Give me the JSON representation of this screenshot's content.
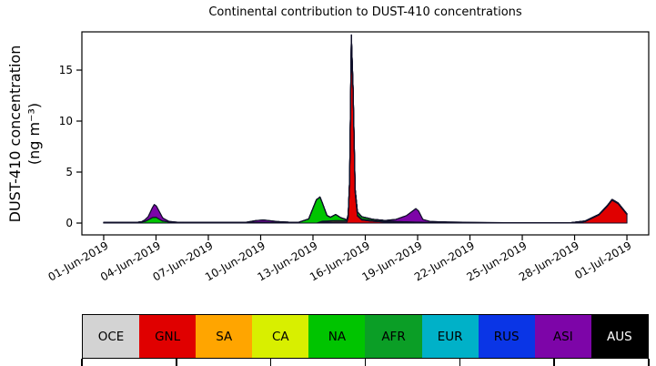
{
  "chart_data": {
    "type": "area",
    "stacked": true,
    "title": "Continental contribution to DUST-410 concentrations",
    "ylabel": "DUST-410 concentration (ng m⁻³)",
    "ylabel_lines": [
      "DUST-410 concentration",
      "(ng m⁻³)"
    ],
    "xlabel": "",
    "x_unit": "days since 01-Jun-2019",
    "xticks_days": [
      0,
      3,
      6,
      9,
      12,
      15,
      18,
      21,
      24,
      27,
      30
    ],
    "xticklabels": [
      "01-Jun-2019",
      "04-Jun-2019",
      "07-Jun-2019",
      "10-Jun-2019",
      "13-Jun-2019",
      "16-Jun-2019",
      "19-Jun-2019",
      "22-Jun-2019",
      "25-Jun-2019",
      "28-Jun-2019",
      "01-Jul-2019"
    ],
    "yticks": [
      0,
      5,
      10,
      15
    ],
    "xlim_days": [
      -1.25,
      31.25
    ],
    "ylim": [
      -1.16,
      18.75
    ],
    "grid": false,
    "line_color": "#10102a",
    "background": "#ffffff",
    "series": [
      {
        "name": "OCE",
        "color": "#d3d3d3",
        "points": [
          [
            0,
            0
          ],
          [
            30,
            0
          ]
        ]
      },
      {
        "name": "GNL",
        "color": "#e00000",
        "points": [
          [
            0,
            0
          ],
          [
            12.2,
            0
          ],
          [
            12.5,
            0.1
          ],
          [
            13.6,
            0.12
          ],
          [
            13.95,
            0.12
          ],
          [
            14.02,
            0.6
          ],
          [
            14.1,
            4.0
          ],
          [
            14.2,
            18.2
          ],
          [
            14.3,
            13.0
          ],
          [
            14.42,
            3.0
          ],
          [
            14.55,
            0.7
          ],
          [
            14.8,
            0.3
          ],
          [
            15.4,
            0.18
          ],
          [
            16.2,
            0.1
          ],
          [
            17.2,
            0.05
          ],
          [
            18.3,
            0.02
          ],
          [
            19.2,
            0
          ],
          [
            26.8,
            0
          ],
          [
            27.6,
            0.15
          ],
          [
            28.4,
            0.8
          ],
          [
            28.9,
            1.7
          ],
          [
            29.15,
            2.25
          ],
          [
            29.5,
            1.9
          ],
          [
            30,
            0.85
          ]
        ]
      },
      {
        "name": "SA",
        "color": "#ffa500",
        "points": [
          [
            0,
            0
          ],
          [
            30,
            0
          ]
        ]
      },
      {
        "name": "CA",
        "color": "#d8ef00",
        "points": [
          [
            0,
            0
          ],
          [
            12.25,
            0
          ],
          [
            12.55,
            0.08
          ],
          [
            13.3,
            0.13
          ],
          [
            14.3,
            0.1
          ],
          [
            15.2,
            0.08
          ],
          [
            16.0,
            0.04
          ],
          [
            16.8,
            0
          ],
          [
            30,
            0
          ]
        ]
      },
      {
        "name": "NA",
        "color": "#00c400",
        "points": [
          [
            0,
            0.06
          ],
          [
            1.9,
            0.07
          ],
          [
            2.35,
            0.15
          ],
          [
            2.8,
            0.55
          ],
          [
            3.0,
            0.58
          ],
          [
            3.35,
            0.22
          ],
          [
            3.75,
            0.1
          ],
          [
            4.6,
            0.06
          ],
          [
            7.9,
            0.06
          ],
          [
            9.0,
            0.09
          ],
          [
            10.1,
            0.06
          ],
          [
            11.2,
            0.09
          ],
          [
            11.75,
            0.4
          ],
          [
            12.2,
            2.3
          ],
          [
            12.4,
            2.45
          ],
          [
            12.8,
            0.55
          ],
          [
            13.0,
            0.35
          ],
          [
            13.3,
            0.6
          ],
          [
            13.6,
            0.28
          ],
          [
            13.9,
            0.12
          ],
          [
            14.25,
            0.14
          ],
          [
            14.55,
            0.3
          ],
          [
            14.85,
            0.22
          ],
          [
            15.4,
            0.13
          ],
          [
            16.3,
            0.1
          ],
          [
            17.3,
            0.08
          ],
          [
            18.3,
            0.06
          ],
          [
            19.6,
            0.05
          ],
          [
            22,
            0.04
          ],
          [
            25.5,
            0.04
          ],
          [
            27.5,
            0.05
          ],
          [
            28.8,
            0.07
          ],
          [
            29.5,
            0.07
          ],
          [
            30,
            0.06
          ]
        ]
      },
      {
        "name": "AFR",
        "color": "#0b9e26",
        "points": [
          [
            0,
            0
          ],
          [
            30,
            0
          ]
        ]
      },
      {
        "name": "EUR",
        "color": "#00b1c8",
        "points": [
          [
            0,
            0
          ],
          [
            30,
            0
          ]
        ]
      },
      {
        "name": "RUS",
        "color": "#0a35e6",
        "points": [
          [
            0,
            0
          ],
          [
            30,
            0
          ]
        ]
      },
      {
        "name": "ASI",
        "color": "#7d05a8",
        "points": [
          [
            0,
            0
          ],
          [
            2.15,
            0
          ],
          [
            2.55,
            0.3
          ],
          [
            2.9,
            1.25
          ],
          [
            3.05,
            1.05
          ],
          [
            3.4,
            0.28
          ],
          [
            3.75,
            0.06
          ],
          [
            4.3,
            0
          ],
          [
            8.1,
            0
          ],
          [
            8.7,
            0.16
          ],
          [
            9.15,
            0.22
          ],
          [
            9.9,
            0.1
          ],
          [
            10.6,
            0.02
          ],
          [
            11.1,
            0
          ],
          [
            16.1,
            0
          ],
          [
            16.75,
            0.2
          ],
          [
            17.35,
            0.6
          ],
          [
            17.9,
            1.32
          ],
          [
            18.05,
            1.1
          ],
          [
            18.3,
            0.28
          ],
          [
            18.7,
            0.1
          ],
          [
            19.7,
            0.06
          ],
          [
            20.8,
            0.03
          ],
          [
            22,
            0.01
          ],
          [
            23,
            0
          ],
          [
            30,
            0
          ]
        ]
      },
      {
        "name": "AUS",
        "color": "#000000",
        "points": [
          [
            0,
            0
          ],
          [
            30,
            0
          ]
        ]
      }
    ],
    "legend": {
      "position": "bottom",
      "items": [
        {
          "label": "OCE",
          "color": "#d3d3d3",
          "text_color": "#000000"
        },
        {
          "label": "GNL",
          "color": "#e00000",
          "text_color": "#000000"
        },
        {
          "label": "SA",
          "color": "#ffa500",
          "text_color": "#000000"
        },
        {
          "label": "CA",
          "color": "#d8ef00",
          "text_color": "#000000"
        },
        {
          "label": "NA",
          "color": "#00c400",
          "text_color": "#000000"
        },
        {
          "label": "AFR",
          "color": "#0b9e26",
          "text_color": "#000000"
        },
        {
          "label": "EUR",
          "color": "#00b1c8",
          "text_color": "#000000"
        },
        {
          "label": "RUS",
          "color": "#0a35e6",
          "text_color": "#000000"
        },
        {
          "label": "ASI",
          "color": "#7d05a8",
          "text_color": "#000000"
        },
        {
          "label": "AUS",
          "color": "#000000",
          "text_color": "#ffffff"
        }
      ]
    }
  }
}
